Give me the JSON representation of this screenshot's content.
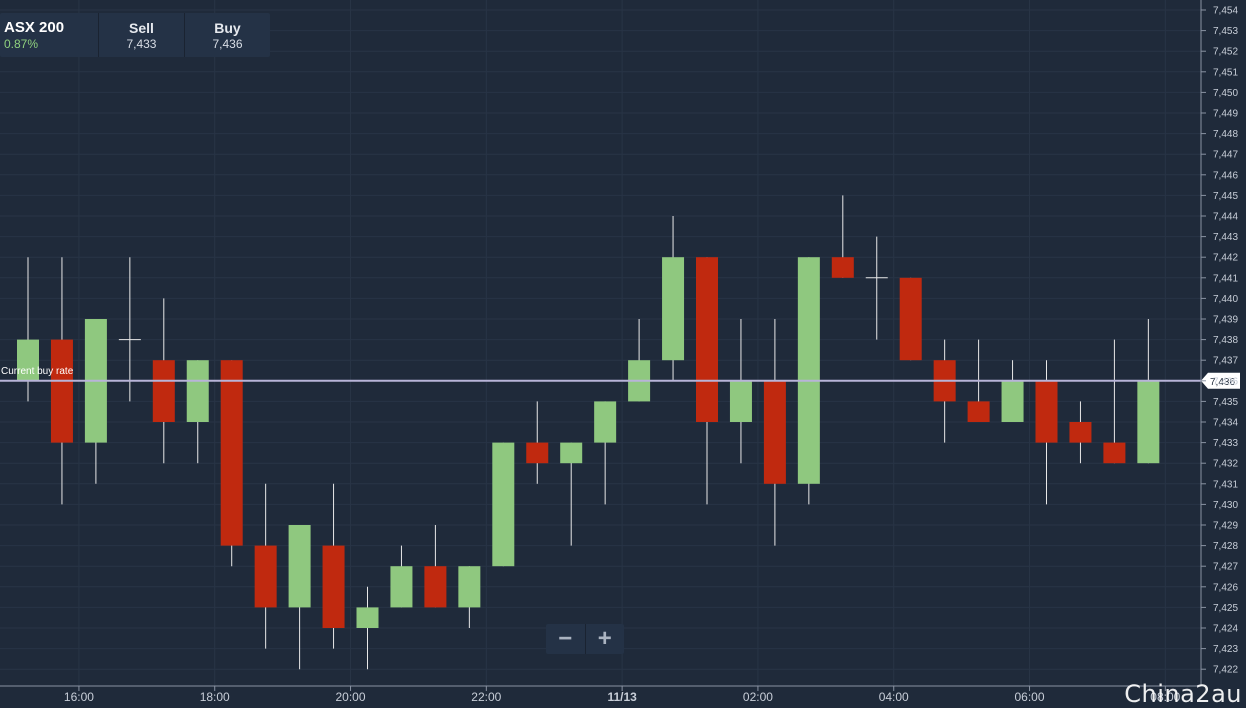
{
  "ticker": {
    "name": "ASX 200",
    "change": "0.87%",
    "sell_label": "Sell",
    "sell_value": "7,433",
    "buy_label": "Buy",
    "buy_value": "7,436"
  },
  "current_rate": {
    "label": "Current buy rate",
    "value": 7436,
    "value_text": "7,436"
  },
  "zoom": {
    "minus": "−",
    "plus": "+"
  },
  "watermark": "China2au",
  "colors": {
    "background": "#1f2a3a",
    "up": "#8fc87f",
    "down": "#c0290f",
    "rate_line": "#b8b4d8",
    "grid": "#283446"
  },
  "chart_data": {
    "type": "candlestick",
    "ylim": [
      7421.5,
      7454.5
    ],
    "y_ticks": [
      "7,422",
      "7,423",
      "7,424",
      "7,425",
      "7,426",
      "7,427",
      "7,428",
      "7,429",
      "7,430",
      "7,431",
      "7,432",
      "7,433",
      "7,434",
      "7,435",
      "7,436",
      "7,437",
      "7,438",
      "7,439",
      "7,440",
      "7,441",
      "7,442",
      "7,443",
      "7,444",
      "7,445",
      "7,446",
      "7,447",
      "7,448",
      "7,449",
      "7,450",
      "7,451",
      "7,452",
      "7,453",
      "7,454"
    ],
    "x_ticks": [
      {
        "label": "16:00",
        "index": 1.5
      },
      {
        "label": "18:00",
        "index": 5.5
      },
      {
        "label": "20:00",
        "index": 9.5
      },
      {
        "label": "22:00",
        "index": 13.5
      },
      {
        "label": "11/13",
        "index": 17.5
      },
      {
        "label": "02:00",
        "index": 21.5
      },
      {
        "label": "04:00",
        "index": 25.5
      },
      {
        "label": "06:00",
        "index": 29.5
      },
      {
        "label": "08:00",
        "index": 33.5
      }
    ],
    "candles": [
      {
        "o": 7436,
        "h": 7442,
        "l": 7435,
        "c": 7438
      },
      {
        "o": 7438,
        "h": 7442,
        "l": 7430,
        "c": 7433
      },
      {
        "o": 7433,
        "h": 7439,
        "l": 7431,
        "c": 7439
      },
      {
        "o": 7438,
        "h": 7442,
        "l": 7435,
        "c": 7438
      },
      {
        "o": 7437,
        "h": 7440,
        "l": 7432,
        "c": 7434
      },
      {
        "o": 7434,
        "h": 7437,
        "l": 7432,
        "c": 7437
      },
      {
        "o": 7437,
        "h": 7437,
        "l": 7427,
        "c": 7428
      },
      {
        "o": 7428,
        "h": 7431,
        "l": 7423,
        "c": 7425
      },
      {
        "o": 7425,
        "h": 7429,
        "l": 7422,
        "c": 7429
      },
      {
        "o": 7428,
        "h": 7431,
        "l": 7423,
        "c": 7424
      },
      {
        "o": 7424,
        "h": 7426,
        "l": 7422,
        "c": 7425
      },
      {
        "o": 7425,
        "h": 7428,
        "l": 7425,
        "c": 7427
      },
      {
        "o": 7427,
        "h": 7429,
        "l": 7425,
        "c": 7425
      },
      {
        "o": 7425,
        "h": 7427,
        "l": 7424,
        "c": 7427
      },
      {
        "o": 7427,
        "h": 7433,
        "l": 7427,
        "c": 7433
      },
      {
        "o": 7433,
        "h": 7435,
        "l": 7431,
        "c": 7432
      },
      {
        "o": 7432,
        "h": 7433,
        "l": 7428,
        "c": 7433
      },
      {
        "o": 7433,
        "h": 7435,
        "l": 7430,
        "c": 7435
      },
      {
        "o": 7435,
        "h": 7439,
        "l": 7435,
        "c": 7437
      },
      {
        "o": 7437,
        "h": 7444,
        "l": 7436,
        "c": 7442
      },
      {
        "o": 7442,
        "h": 7442,
        "l": 7430,
        "c": 7434
      },
      {
        "o": 7434,
        "h": 7439,
        "l": 7432,
        "c": 7436
      },
      {
        "o": 7436,
        "h": 7439,
        "l": 7428,
        "c": 7431
      },
      {
        "o": 7431,
        "h": 7442,
        "l": 7430,
        "c": 7442
      },
      {
        "o": 7442,
        "h": 7445,
        "l": 7441,
        "c": 7441
      },
      {
        "o": 7441,
        "h": 7443,
        "l": 7438,
        "c": 7441
      },
      {
        "o": 7441,
        "h": 7441,
        "l": 7437,
        "c": 7437
      },
      {
        "o": 7437,
        "h": 7438,
        "l": 7433,
        "c": 7435
      },
      {
        "o": 7435,
        "h": 7438,
        "l": 7434,
        "c": 7434
      },
      {
        "o": 7434,
        "h": 7437,
        "l": 7434,
        "c": 7436
      },
      {
        "o": 7436,
        "h": 7437,
        "l": 7430,
        "c": 7433
      },
      {
        "o": 7434,
        "h": 7435,
        "l": 7432,
        "c": 7433
      },
      {
        "o": 7433,
        "h": 7438,
        "l": 7432,
        "c": 7432
      },
      {
        "o": 7432,
        "h": 7439,
        "l": 7432,
        "c": 7436
      }
    ]
  }
}
